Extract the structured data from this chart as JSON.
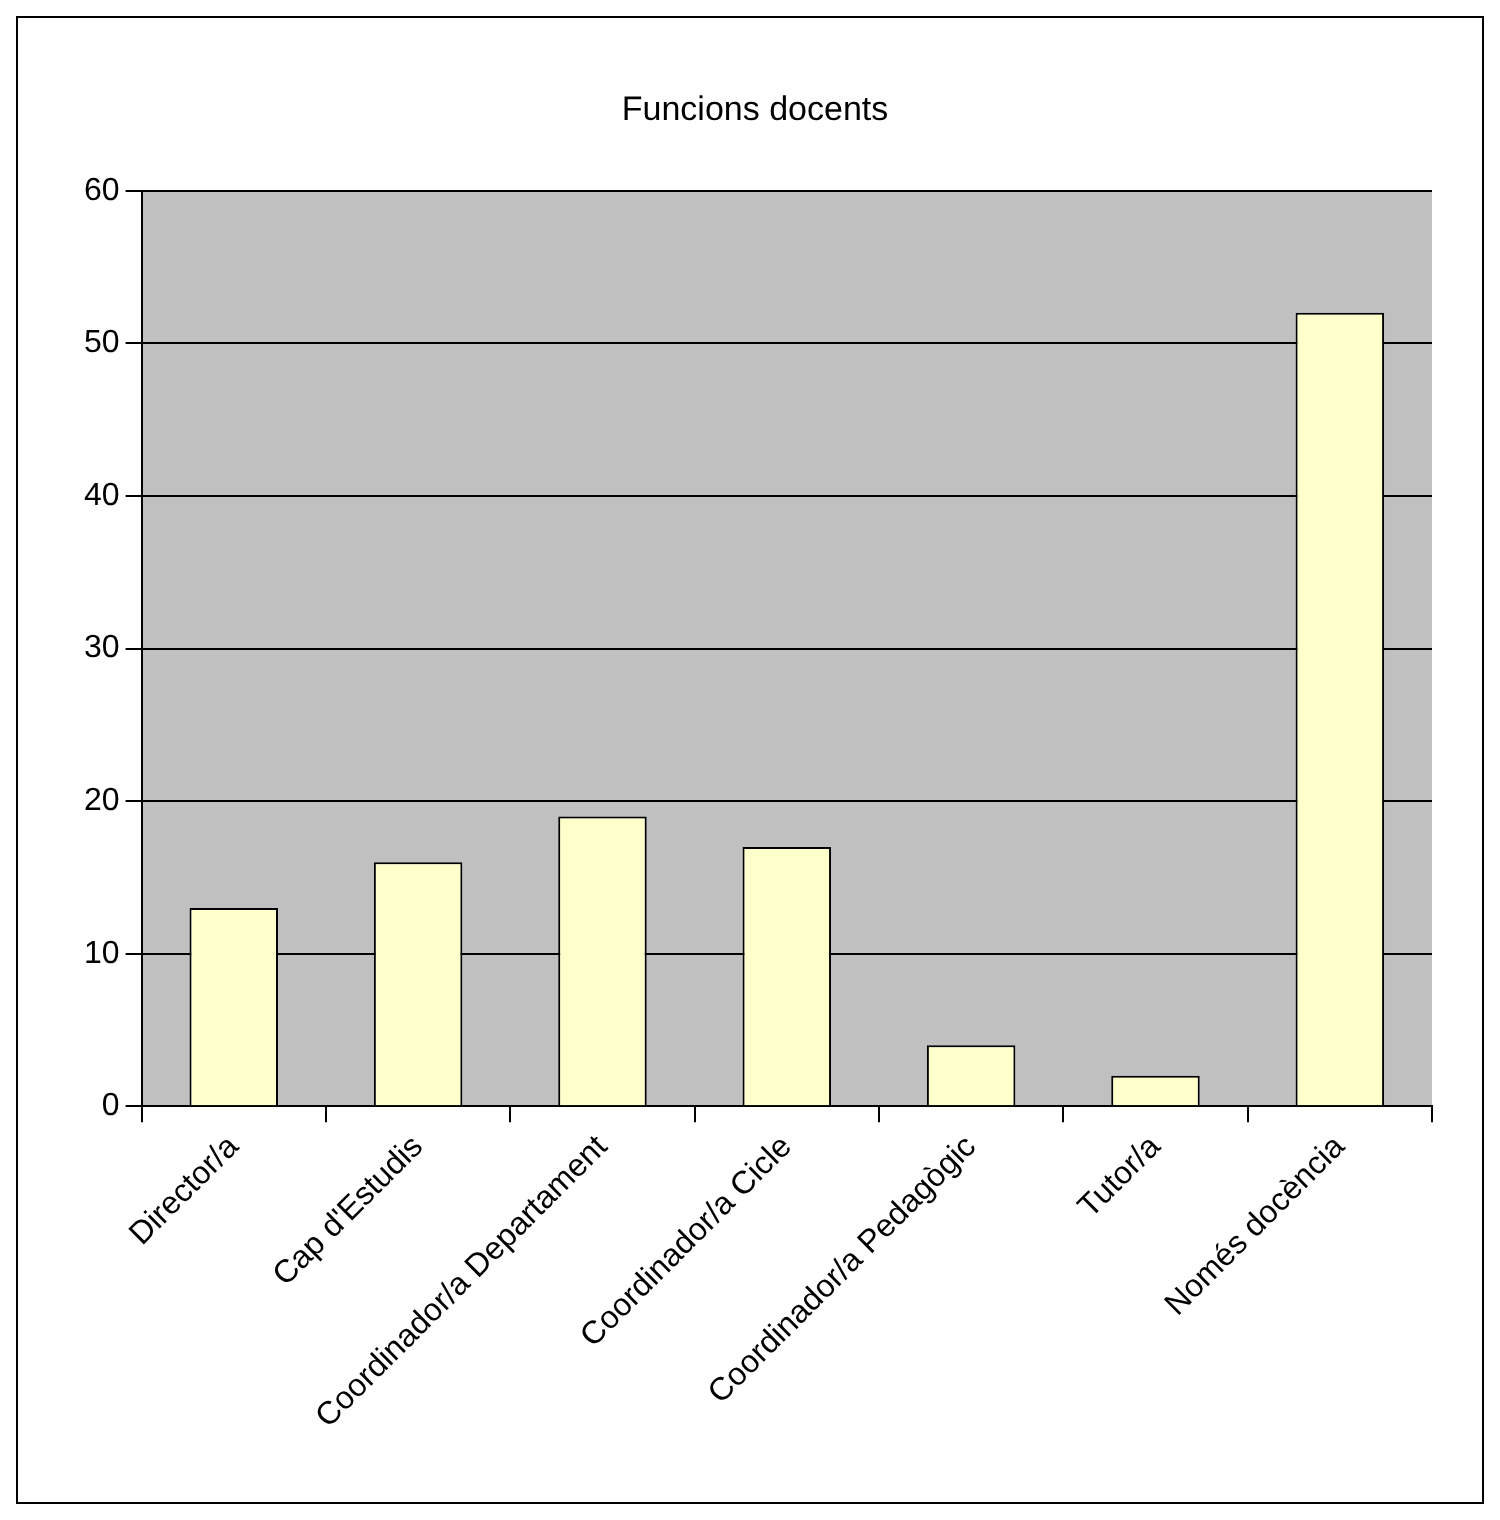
{
  "chart_data": {
    "type": "bar",
    "title": "Funcions docents",
    "categories": [
      "Director/a",
      "Cap d'Estudis",
      "Coordinador/a Departament",
      "Coordinador/a Cicle",
      "Coordinador/a Pedagògic",
      "Tutor/a",
      "Només docència"
    ],
    "values": [
      13,
      16,
      19,
      17,
      4,
      2,
      52
    ],
    "color": "#ffffcc",
    "ylim": [
      0,
      60
    ],
    "yticks": [
      0,
      10,
      20,
      30,
      40,
      50,
      60
    ],
    "grid": "y",
    "legend": false
  }
}
